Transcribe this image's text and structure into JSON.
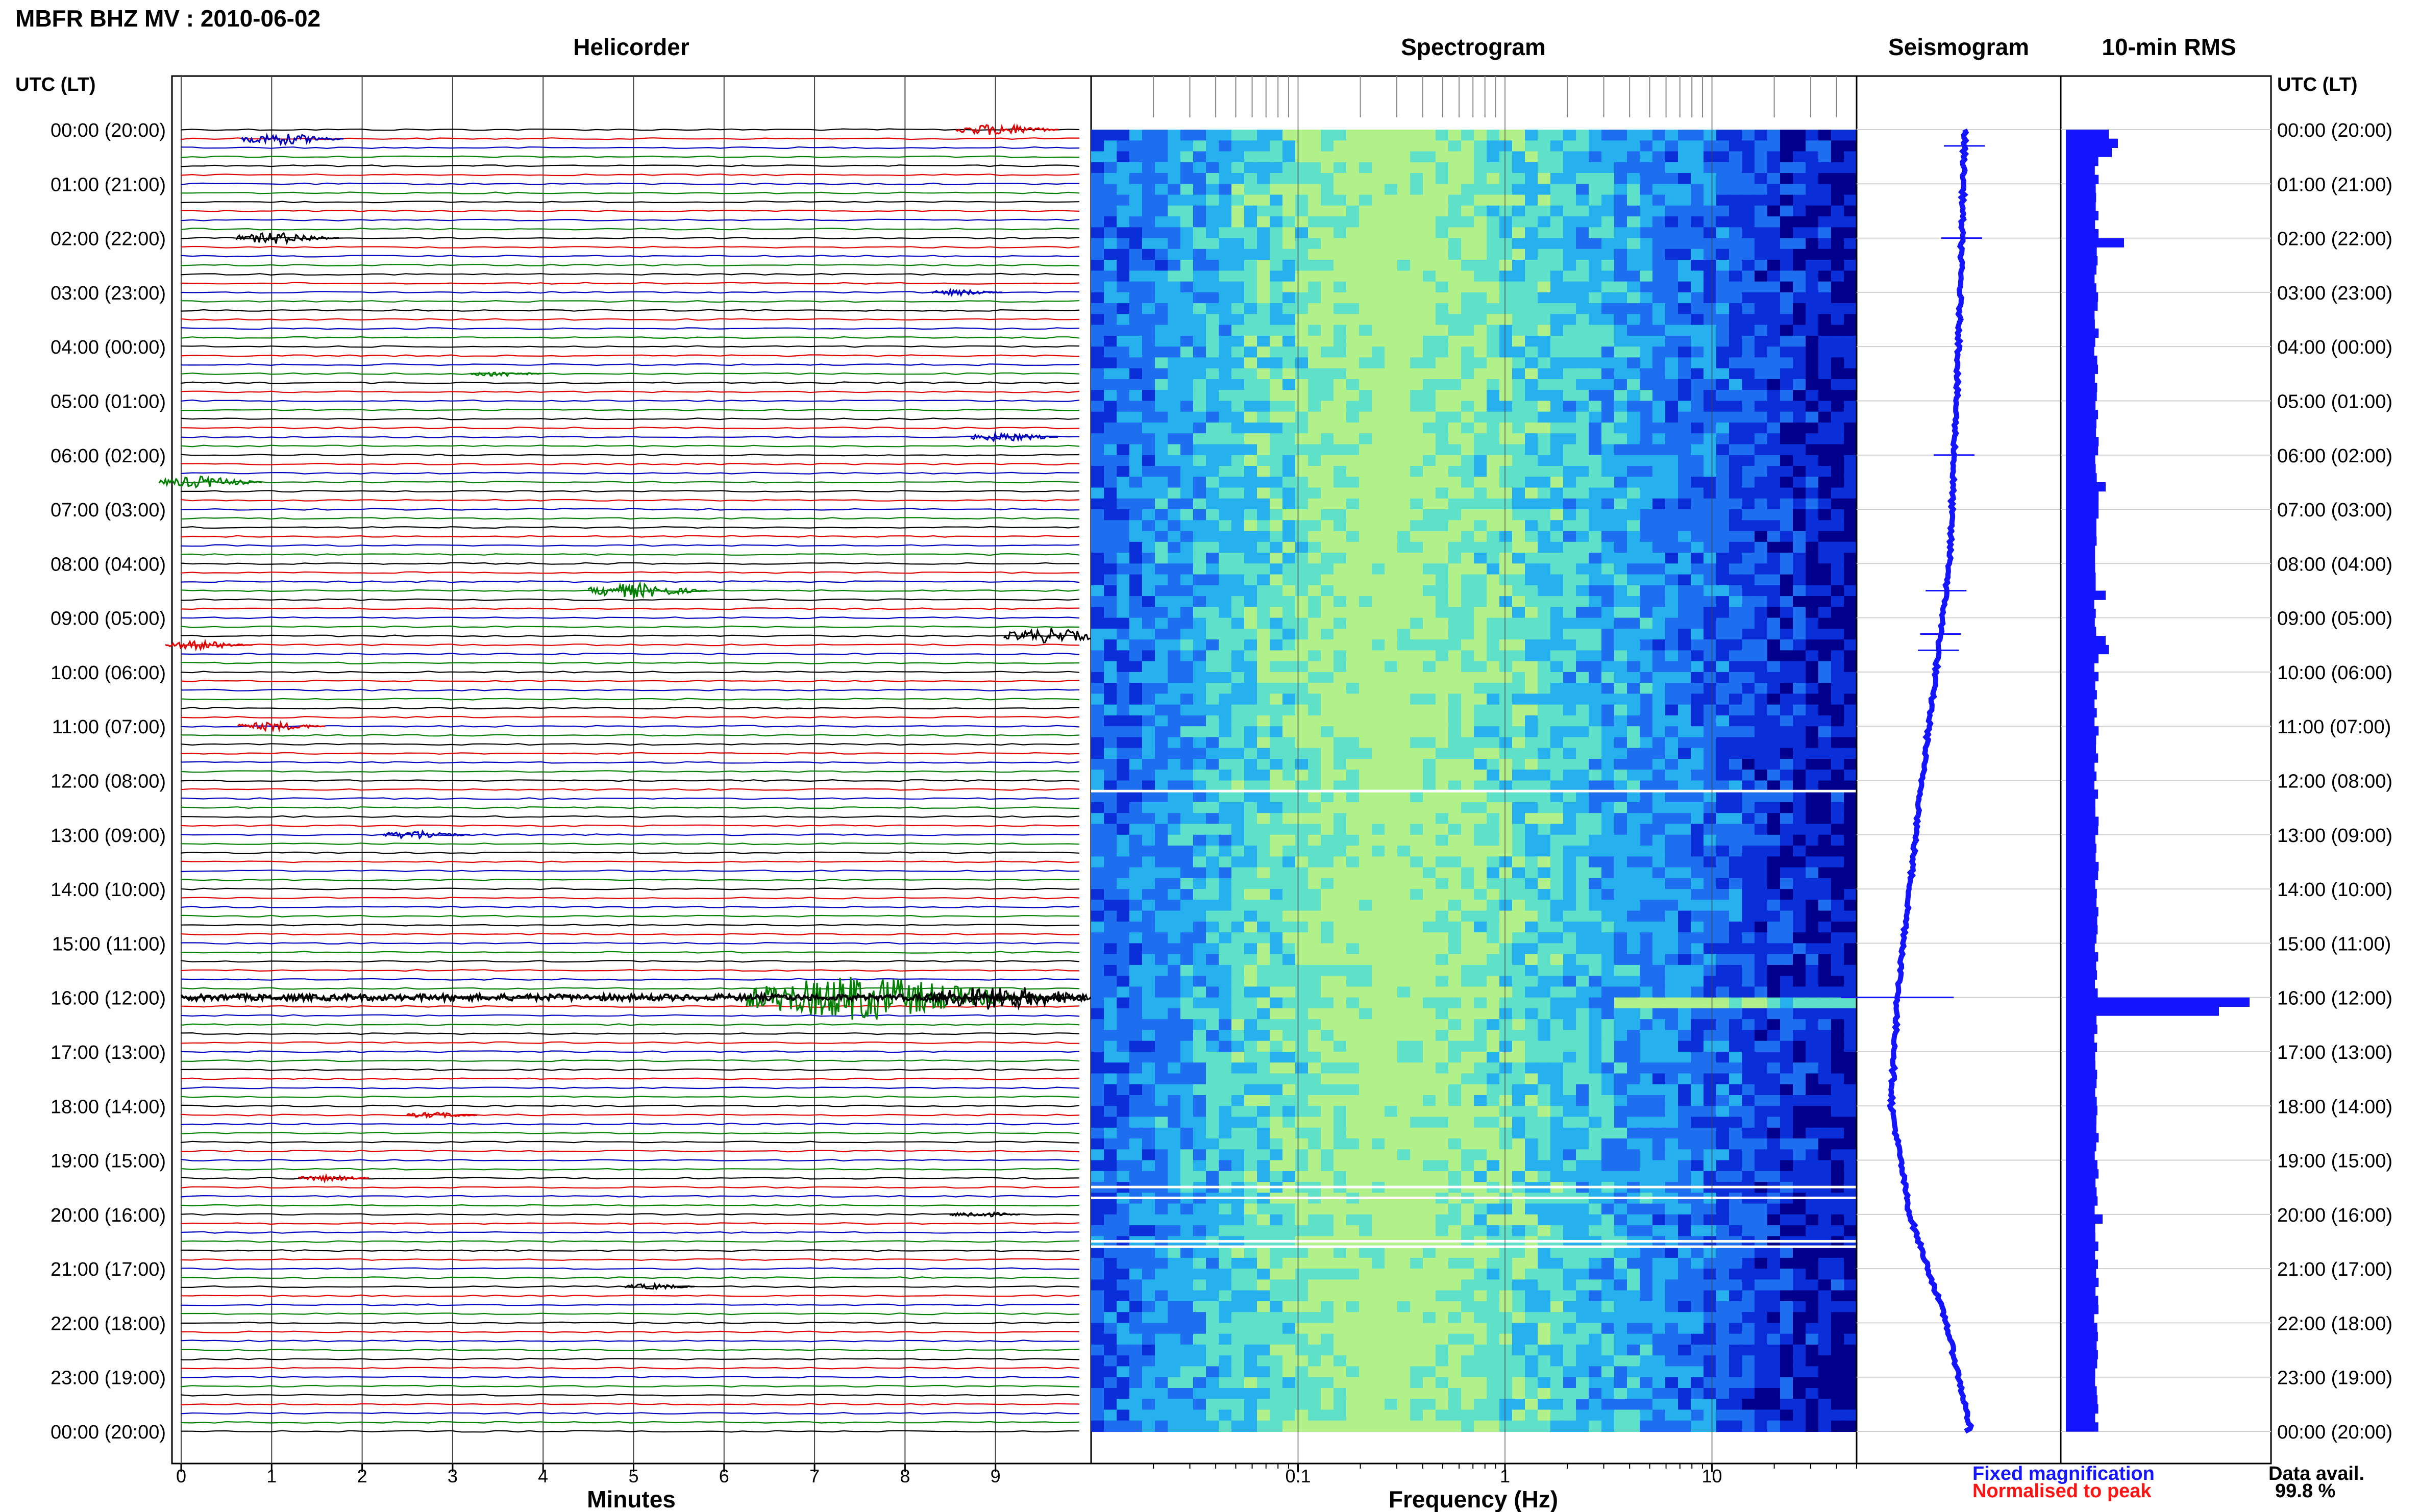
{
  "page_title": "MBFR BHZ MV : 2010-06-02",
  "panels": {
    "helicorder": "Helicorder",
    "spectrogram": "Spectrogram",
    "seismogram": "Seismogram",
    "rms": "10-min RMS"
  },
  "time_axis_label": "UTC (LT)",
  "time_labels": [
    "00:00 (20:00)",
    "01:00 (21:00)",
    "02:00 (22:00)",
    "03:00 (23:00)",
    "04:00 (00:00)",
    "05:00 (01:00)",
    "06:00 (02:00)",
    "07:00 (03:00)",
    "08:00 (04:00)",
    "09:00 (05:00)",
    "10:00 (06:00)",
    "11:00 (07:00)",
    "12:00 (08:00)",
    "13:00 (09:00)",
    "14:00 (10:00)",
    "15:00 (11:00)",
    "16:00 (12:00)",
    "17:00 (13:00)",
    "18:00 (14:00)",
    "19:00 (15:00)",
    "20:00 (16:00)",
    "21:00 (17:00)",
    "22:00 (18:00)",
    "23:00 (19:00)",
    "00:00 (20:00)"
  ],
  "legend": {
    "fixed": "Fixed magnification",
    "normalised": "Normalised to peak",
    "fixed_color": "#1414ff",
    "normalised_color": "#ff1414"
  },
  "data_avail": {
    "label": "Data avail.",
    "value": "99.8 %"
  },
  "chart_data": [
    {
      "type": "line",
      "name": "helicorder",
      "title": "Helicorder",
      "xlabel": "Minutes",
      "xticks": [
        "0",
        "1",
        "2",
        "3",
        "4",
        "5",
        "6",
        "7",
        "8",
        "9"
      ],
      "xlim": [
        0,
        10
      ],
      "trace_colors": [
        "#000000",
        "#e00000",
        "#0000c0",
        "#008000"
      ],
      "rows_per_hour": 6,
      "events": [
        {
          "hour": 0.17,
          "minute": 1.1,
          "amp": 4,
          "color": "#0000c0"
        },
        {
          "hour": 0.0,
          "minute": 9.0,
          "amp": 4,
          "color": "#e00000"
        },
        {
          "hour": 2.0,
          "minute": 1.05,
          "amp": 4,
          "color": "#000000"
        },
        {
          "hour": 3.0,
          "minute": 8.6,
          "amp": 2,
          "color": "#0000c0"
        },
        {
          "hour": 4.5,
          "minute": 3.5,
          "amp": 2,
          "color": "#008000"
        },
        {
          "hour": 5.67,
          "minute": 9.1,
          "amp": 3,
          "color": "#0000c0"
        },
        {
          "hour": 6.5,
          "minute": 0.2,
          "amp": 4,
          "color": "#008000"
        },
        {
          "hour": 8.5,
          "minute": 5.0,
          "amp": 5,
          "color": "#008000"
        },
        {
          "hour": 9.33,
          "minute": 9.6,
          "amp": 5,
          "color": "#000000"
        },
        {
          "hour": 9.5,
          "minute": 0.2,
          "amp": 3,
          "color": "#e00000"
        },
        {
          "hour": 11.0,
          "minute": 1.0,
          "amp": 3,
          "color": "#e00000"
        },
        {
          "hour": 13.0,
          "minute": 2.6,
          "amp": 3,
          "color": "#0000c0"
        },
        {
          "hour": 16.0,
          "minute": 7.5,
          "amp": 16,
          "color": "#008000"
        },
        {
          "hour": 16.0,
          "minute": 9.0,
          "amp": 9,
          "color": "#000000"
        },
        {
          "hour": 18.17,
          "minute": 2.8,
          "amp": 2,
          "color": "#e00000"
        },
        {
          "hour": 19.33,
          "minute": 1.6,
          "amp": 2,
          "color": "#e00000"
        },
        {
          "hour": 20.0,
          "minute": 8.8,
          "amp": 2,
          "color": "#000000"
        },
        {
          "hour": 21.33,
          "minute": 5.2,
          "amp": 2,
          "color": "#000000"
        }
      ]
    },
    {
      "type": "heatmap",
      "name": "spectrogram",
      "title": "Spectrogram",
      "xlabel": "Frequency (Hz)",
      "xscale": "log",
      "xlim": [
        0.01,
        50
      ],
      "xticks": [
        "0.1",
        "1",
        "10"
      ],
      "ylim_hours": [
        0,
        24
      ],
      "colormap": [
        "#00008c",
        "#0a2ed8",
        "#1e6ff0",
        "#27b0ee",
        "#5fe0c8",
        "#b2f08a"
      ],
      "energy_peak_hz": 0.25,
      "gaps_hours": [
        12.2,
        19.5,
        19.7,
        20.5,
        20.6
      ]
    },
    {
      "type": "line",
      "name": "seismogram",
      "title": "Seismogram",
      "ylim_hours": [
        0,
        24
      ],
      "color": "#1414ff",
      "offset_points": [
        [
          0,
          0.0
        ],
        [
          4,
          -0.2
        ],
        [
          8,
          -0.5
        ],
        [
          12,
          -1.4
        ],
        [
          16,
          -2.2
        ],
        [
          18,
          -2.4
        ],
        [
          20,
          -1.8
        ],
        [
          22,
          -0.6
        ],
        [
          24,
          0.2
        ]
      ],
      "spikes_hours": [
        0.3,
        2.0,
        6.0,
        8.5,
        9.3,
        9.6,
        16.0
      ]
    },
    {
      "type": "bar",
      "name": "rms",
      "title": "10-min RMS",
      "ylim_hours": [
        0,
        24
      ],
      "color": "#1414ff",
      "interval_minutes": 10,
      "baseline": 1.0,
      "peaks": [
        {
          "hour": 0.0,
          "value": 1.4
        },
        {
          "hour": 0.17,
          "value": 1.7
        },
        {
          "hour": 0.33,
          "value": 1.5
        },
        {
          "hour": 2.0,
          "value": 1.9
        },
        {
          "hour": 6.5,
          "value": 1.3
        },
        {
          "hour": 8.5,
          "value": 1.3
        },
        {
          "hour": 9.33,
          "value": 1.3
        },
        {
          "hour": 9.5,
          "value": 1.4
        },
        {
          "hour": 16.0,
          "value": 6.0
        },
        {
          "hour": 16.17,
          "value": 5.0
        },
        {
          "hour": 20.0,
          "value": 1.2
        }
      ]
    }
  ]
}
